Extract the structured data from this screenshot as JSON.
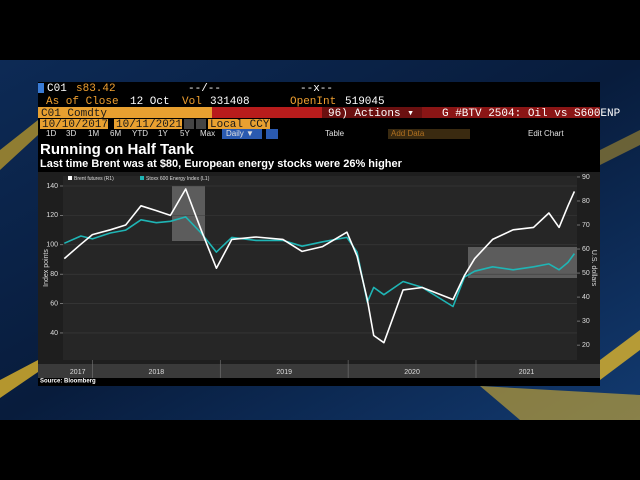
{
  "terminal": {
    "ticker": "C01",
    "price": "s83.42",
    "date_field": "--/--",
    "change_field": "--x--",
    "as_of_label": "As of Close",
    "as_of": "12 Oct",
    "vol_label": "Vol",
    "vol": "331408",
    "open_int_label": "OpenInt",
    "open_int": "519045",
    "security": "C01 Comdty",
    "actions": "96) Actions ▾",
    "chart_name": "G #BTV 2504: Oil vs S600ENP",
    "start_date": "10/10/2017",
    "end_date": "10/11/2021",
    "currency": "Local CCY",
    "periods": [
      "1D",
      "3D",
      "1M",
      "6M",
      "YTD",
      "1Y",
      "5Y",
      "Max"
    ],
    "frequency": "Daily ▼",
    "table": "Table",
    "add_data": "Add Data",
    "edit_chart": "Edit Chart"
  },
  "chart_data": {
    "type": "line",
    "title": "Running on Half Tank",
    "subtitle": "Last time Brent was at $80, European energy stocks were 26% higher",
    "y_label": "Index points",
    "y2_label": "U.S. dollars",
    "source": "Source: Bloomberg",
    "x": [
      2017.78,
      2017.91,
      2018.0,
      2018.14,
      2018.26,
      2018.38,
      2018.5,
      2018.61,
      2018.73,
      2018.85,
      2018.97,
      2019.09,
      2019.28,
      2019.49,
      2019.64,
      2019.8,
      2019.99,
      2020.07,
      2020.15,
      2020.2,
      2020.28,
      2020.43,
      2020.58,
      2020.82,
      2020.91,
      2020.99,
      2021.13,
      2021.29,
      2021.45,
      2021.57,
      2021.65,
      2021.72,
      2021.77
    ],
    "xlim": [
      2017.77,
      2021.79
    ],
    "xticks": [
      2017,
      2018,
      2019,
      2020,
      2021
    ],
    "ylim": [
      21.6,
      146.8
    ],
    "yticks": [
      40,
      60,
      80,
      100,
      120,
      140
    ],
    "y2lim": [
      13.8,
      90.4
    ],
    "y2ticks": [
      20,
      30,
      40,
      50,
      60,
      70,
      80,
      90
    ],
    "grid": true,
    "series": [
      {
        "name": "Brent futures (R1)",
        "color": "#ffffff",
        "axis": "y2",
        "values": [
          56,
          62,
          66,
          68,
          70,
          78,
          76,
          74,
          85,
          68,
          52,
          64,
          65,
          64,
          59,
          61,
          67,
          57,
          39,
          24,
          21,
          43,
          44,
          39,
          49,
          56,
          64,
          68,
          69,
          75,
          69,
          78,
          84
        ]
      },
      {
        "name": "Stoxx 600 Energy Index (L1)",
        "color": "#1fb5b5",
        "values": [
          101,
          106,
          104,
          108,
          110,
          117,
          115,
          116,
          119,
          108,
          95,
          105,
          103,
          103,
          99,
          102,
          105,
          95,
          61,
          71,
          66,
          75,
          71,
          58,
          78,
          82,
          85,
          83,
          85,
          87,
          83,
          88,
          94
        ]
      }
    ]
  }
}
